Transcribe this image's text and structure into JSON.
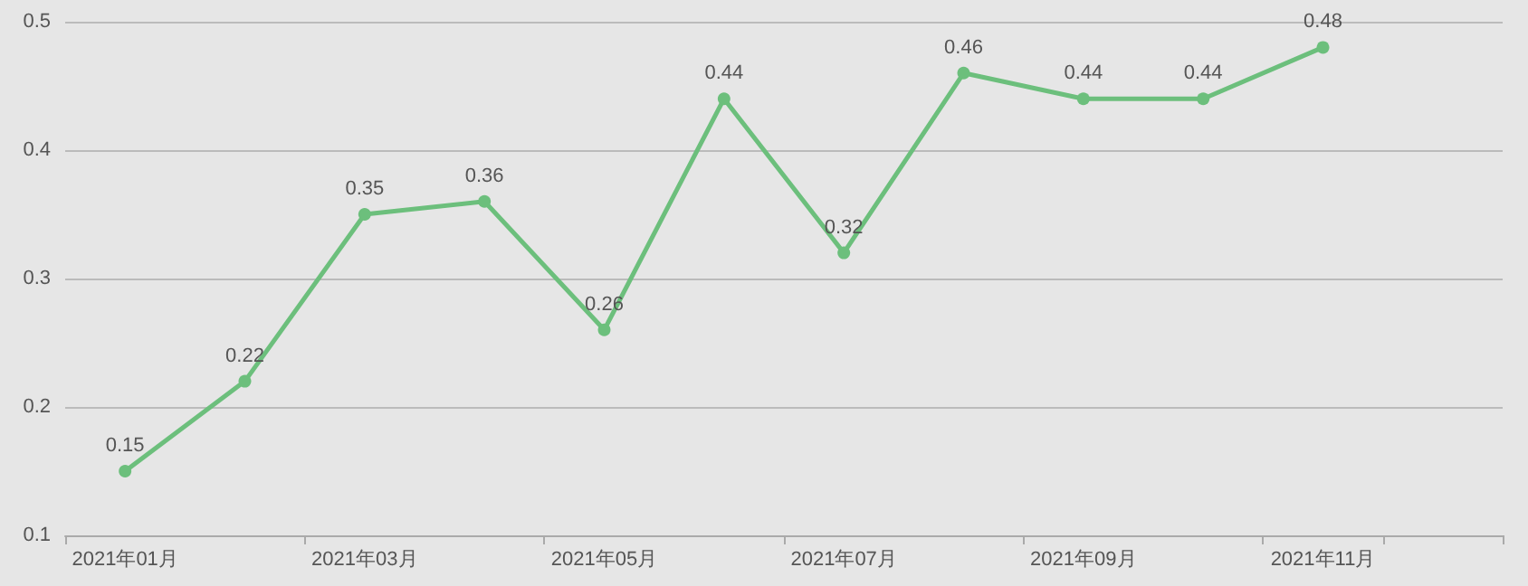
{
  "chart_data": {
    "type": "line",
    "categories": [
      "2021年01月",
      null,
      "2021年03月",
      null,
      "2021年05月",
      null,
      "2021年07月",
      null,
      "2021年09月",
      null,
      "2021年11月",
      null
    ],
    "series": [
      {
        "color": "#6cbf7c",
        "values": [
          0.15,
          0.22,
          0.35,
          0.36,
          0.26,
          0.44,
          0.32,
          0.46,
          0.44,
          0.44,
          0.48,
          null
        ]
      }
    ],
    "ylim": [
      0.1,
      0.5
    ],
    "yticks": [
      0.1,
      0.2,
      0.3,
      0.4,
      0.5
    ],
    "grid": "y",
    "data_labels": true,
    "marker": "circle",
    "line_style": "solid"
  }
}
